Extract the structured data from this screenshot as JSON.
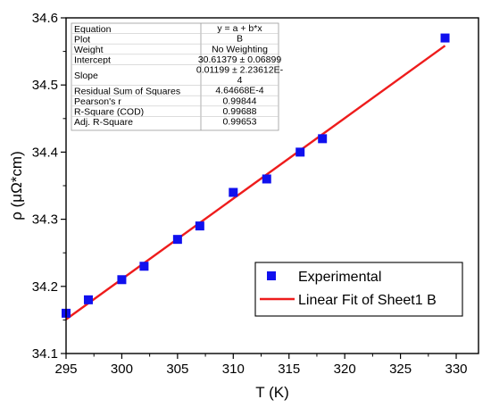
{
  "chart_data": {
    "type": "scatter",
    "xlabel": "T (K)",
    "ylabel": "ρ (μΩ*cm)",
    "xlim": [
      295,
      332
    ],
    "ylim": [
      34.1,
      34.6
    ],
    "x_ticks": [
      "295",
      "300",
      "305",
      "310",
      "315",
      "320",
      "325",
      "330"
    ],
    "y_ticks": [
      "34.1",
      "34.2",
      "34.3",
      "34.4",
      "34.5",
      "34.6"
    ],
    "series": [
      {
        "name": "Experimental",
        "kind": "scatter",
        "marker": "square",
        "color": "#1010ee",
        "x": [
          295,
          297,
          300,
          302,
          305,
          307,
          310,
          313,
          316,
          318,
          329
        ],
        "y": [
          34.16,
          34.18,
          34.21,
          34.23,
          34.27,
          34.29,
          34.34,
          34.36,
          34.4,
          34.42,
          34.57
        ]
      },
      {
        "name": "Linear Fit of Sheet1 B",
        "kind": "line",
        "color": "#ee1c1c",
        "intercept": 30.61379,
        "slope": 0.01199,
        "x_range": [
          295,
          329
        ]
      }
    ],
    "legend_position": "bottom-right",
    "grid": false,
    "stats_table": [
      {
        "label": "Equation",
        "value": [
          "y = a + b*x"
        ]
      },
      {
        "label": "Plot",
        "value": [
          "B"
        ]
      },
      {
        "label": "Weight",
        "value": [
          "No Weighting"
        ]
      },
      {
        "label": "Intercept",
        "value": [
          "30.61379 ± 0.06899"
        ]
      },
      {
        "label": "Slope",
        "value": [
          "0.01199 ± 2.23612E-",
          "4"
        ]
      },
      {
        "label": "Residual Sum of Squares",
        "value": [
          "4.64668E-4"
        ]
      },
      {
        "label": "Pearson's r",
        "value": [
          "0.99844"
        ]
      },
      {
        "label": "R-Square (COD)",
        "value": [
          "0.99688"
        ]
      },
      {
        "label": "Adj. R-Square",
        "value": [
          "0.99653"
        ]
      }
    ]
  }
}
